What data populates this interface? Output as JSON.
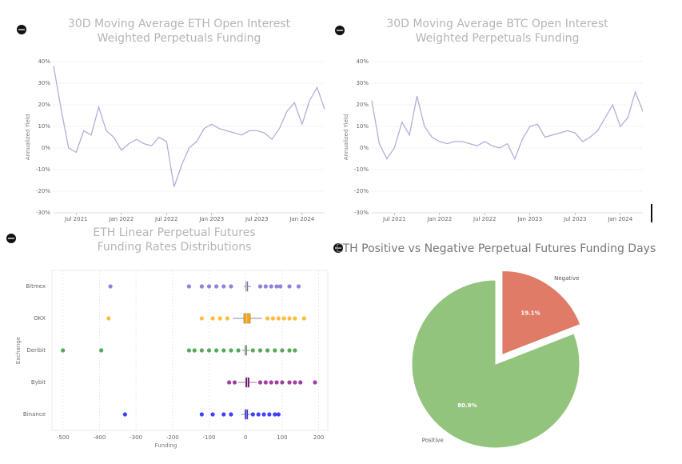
{
  "chart_data": [
    {
      "type": "line",
      "title": [
        "30D Moving Average ETH Open Interest",
        "Weighted Perpetuals Funding"
      ],
      "y_label": "Annualized Yield",
      "x": [
        "2021-04",
        "2021-05",
        "2021-06",
        "2021-07",
        "2021-08",
        "2021-09",
        "2021-10",
        "2021-11",
        "2021-12",
        "2022-01",
        "2022-02",
        "2022-03",
        "2022-04",
        "2022-05",
        "2022-06",
        "2022-07",
        "2022-08",
        "2022-09",
        "2022-10",
        "2022-11",
        "2022-12",
        "2023-01",
        "2023-02",
        "2023-03",
        "2023-04",
        "2023-05",
        "2023-06",
        "2023-07",
        "2023-08",
        "2023-09",
        "2023-10",
        "2023-11",
        "2023-12",
        "2024-01",
        "2024-02",
        "2024-03",
        "2024-04"
      ],
      "series": [
        {
          "color": "#b3aed8",
          "values": [
            38,
            18,
            0,
            -2,
            8,
            6,
            19,
            8,
            5,
            -1,
            2,
            4,
            2,
            1,
            5,
            3,
            -18,
            -8,
            0,
            3,
            9,
            11,
            9,
            8,
            7,
            6,
            8,
            8,
            7,
            4,
            9,
            17,
            21,
            11,
            22,
            28,
            18
          ]
        }
      ],
      "xlim": [
        "2021-04",
        "2024-04"
      ],
      "xticks": [
        {
          "value": "2021-07",
          "label": "Jul 2021"
        },
        {
          "value": "2022-01",
          "label": "Jan 2022"
        },
        {
          "value": "2022-07",
          "label": "Jul 2022"
        },
        {
          "value": "2023-01",
          "label": "Jan 2023"
        },
        {
          "value": "2023-07",
          "label": "Jul 2023"
        },
        {
          "value": "2024-01",
          "label": "Jan 2024"
        }
      ],
      "ylim": [
        -30,
        40
      ],
      "yticks": [
        {
          "value": -30,
          "label": "-30%"
        },
        {
          "value": -20,
          "label": "-20%"
        },
        {
          "value": -10,
          "label": "-10%"
        },
        {
          "value": 0,
          "label": "0%"
        },
        {
          "value": 10,
          "label": "10%"
        },
        {
          "value": 20,
          "label": "20%"
        },
        {
          "value": 30,
          "label": "30%"
        },
        {
          "value": 40,
          "label": "40%"
        }
      ],
      "grid": true
    },
    {
      "type": "line",
      "title": [
        "30D Moving Average BTC Open Interest",
        "Weighted Perpetuals Funding"
      ],
      "y_label": "Annualized Yield",
      "x": [
        "2021-04",
        "2021-05",
        "2021-06",
        "2021-07",
        "2021-08",
        "2021-09",
        "2021-10",
        "2021-11",
        "2021-12",
        "2022-01",
        "2022-02",
        "2022-03",
        "2022-04",
        "2022-05",
        "2022-06",
        "2022-07",
        "2022-08",
        "2022-09",
        "2022-10",
        "2022-11",
        "2022-12",
        "2023-01",
        "2023-02",
        "2023-03",
        "2023-04",
        "2023-05",
        "2023-06",
        "2023-07",
        "2023-08",
        "2023-09",
        "2023-10",
        "2023-11",
        "2023-12",
        "2024-01",
        "2024-02",
        "2024-03",
        "2024-04"
      ],
      "series": [
        {
          "color": "#b3aed8",
          "values": [
            22,
            2,
            -5,
            0,
            12,
            6,
            24,
            10,
            5,
            3,
            2,
            3,
            3,
            2,
            1,
            3,
            1,
            0,
            2,
            -5,
            4,
            10,
            11,
            5,
            6,
            7,
            8,
            7,
            3,
            5,
            8,
            14,
            20,
            10,
            14,
            26,
            17
          ]
        }
      ],
      "xlim": [
        "2021-04",
        "2024-04"
      ],
      "xticks": [
        {
          "value": "2021-07",
          "label": "Jul 2021"
        },
        {
          "value": "2022-01",
          "label": "Jan 2022"
        },
        {
          "value": "2022-07",
          "label": "Jul 2022"
        },
        {
          "value": "2023-01",
          "label": "Jan 2023"
        },
        {
          "value": "2023-07",
          "label": "Jul 2023"
        },
        {
          "value": "2024-01",
          "label": "Jan 2024"
        }
      ],
      "ylim": [
        -30,
        40
      ],
      "yticks": [
        {
          "value": -30,
          "label": "-30%"
        },
        {
          "value": -20,
          "label": "-20%"
        },
        {
          "value": -10,
          "label": "-10%"
        },
        {
          "value": 0,
          "label": "0%"
        },
        {
          "value": 10,
          "label": "10%"
        },
        {
          "value": 20,
          "label": "20%"
        },
        {
          "value": 30,
          "label": "30%"
        },
        {
          "value": 40,
          "label": "40%"
        }
      ],
      "grid": true
    },
    {
      "type": "box",
      "title": [
        "ETH Linear Perpetual Futures",
        "Funding Rates Distributions"
      ],
      "x_label": "Funding",
      "y_label": "Exchange",
      "categories": [
        "Bitmex",
        "OKX",
        "Deribit",
        "Bybit",
        "Binance"
      ],
      "boxes": [
        {
          "color": "#6a5acd",
          "whislo": -5,
          "q1": 1,
          "med": 3,
          "q3": 6,
          "whishi": 15,
          "fliers": [
            -370,
            -155,
            -120,
            -100,
            -80,
            -60,
            -40,
            40,
            55,
            70,
            85,
            95,
            120,
            145
          ]
        },
        {
          "color": "#ffa500",
          "whislo": -35,
          "q1": -5,
          "med": 3,
          "q3": 13,
          "whishi": 45,
          "fliers": [
            -375,
            -120,
            -90,
            -70,
            -50,
            60,
            75,
            90,
            105,
            120,
            135,
            160
          ]
        },
        {
          "color": "#228b22",
          "whislo": -10,
          "q1": -2,
          "med": 0,
          "q3": 3,
          "whishi": 12,
          "fliers": [
            -500,
            -395,
            -155,
            -140,
            -120,
            -100,
            -80,
            -60,
            -40,
            -20,
            20,
            40,
            60,
            80,
            100,
            120,
            135
          ]
        },
        {
          "color": "#800080",
          "whislo": -20,
          "q1": 0,
          "med": 5,
          "q3": 10,
          "whishi": 30,
          "fliers": [
            -45,
            -30,
            40,
            55,
            70,
            85,
            100,
            120,
            135,
            150,
            190
          ]
        },
        {
          "color": "#0000ff",
          "whislo": -12,
          "q1": -2,
          "med": 2,
          "q3": 6,
          "whishi": 15,
          "fliers": [
            -330,
            -120,
            -90,
            -60,
            -40,
            20,
            35,
            50,
            65,
            80,
            90
          ]
        }
      ],
      "xlim": [
        -530,
        225
      ],
      "xticks": [
        -500,
        -400,
        -300,
        -200,
        -100,
        0,
        100,
        200
      ],
      "grid": true
    },
    {
      "type": "pie",
      "title": [
        "ETH Positive vs Negative Perpetual Futures Funding Days"
      ],
      "categories": [
        "Negative",
        "Positive"
      ],
      "values": [
        19.1,
        80.9
      ],
      "value_labels": [
        "19.1%",
        "80.9%"
      ],
      "colors": [
        "#e07b67",
        "#93c47d"
      ],
      "explode": [
        true,
        false
      ]
    }
  ]
}
